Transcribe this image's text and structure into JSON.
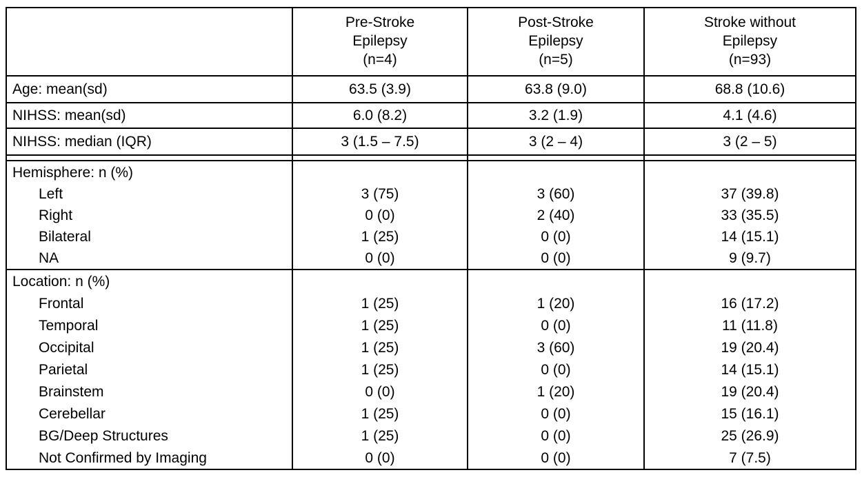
{
  "table": {
    "columns": [
      {
        "title_lines": [
          "Pre-Stroke",
          "Epilepsy",
          "(n=4)"
        ]
      },
      {
        "title_lines": [
          "Post-Stroke",
          "Epilepsy",
          "(n=5)"
        ]
      },
      {
        "title_lines": [
          "Stroke without",
          "Epilepsy",
          "(n=93)"
        ]
      }
    ],
    "simple_rows": [
      {
        "label": "Age: mean(sd)",
        "values": [
          "63.5 (3.9)",
          "63.8 (9.0)",
          "68.8 (10.6)"
        ]
      },
      {
        "label": "NIHSS: mean(sd)",
        "values": [
          "6.0 (8.2)",
          "3.2 (1.9)",
          "4.1 (4.6)"
        ]
      },
      {
        "label": "NIHSS: median (IQR)",
        "values": [
          "3 (1.5 – 7.5)",
          "3 (2 – 4)",
          "3 (2 – 5)"
        ]
      }
    ],
    "sections": [
      {
        "label": "Hemisphere: n (%)",
        "rows": [
          {
            "label": "Left",
            "values": [
              "3 (75)",
              "3 (60)",
              "37 (39.8)"
            ]
          },
          {
            "label": "Right",
            "values": [
              "0 (0)",
              "2 (40)",
              "33 (35.5)"
            ]
          },
          {
            "label": "Bilateral",
            "values": [
              "1 (25)",
              "0 (0)",
              "14 (15.1)"
            ]
          },
          {
            "label": "NA",
            "values": [
              "0 (0)",
              "0 (0)",
              "9 (9.7)"
            ]
          }
        ]
      },
      {
        "label": "Location: n (%)",
        "rows": [
          {
            "label": "Frontal",
            "values": [
              "1 (25)",
              "1 (20)",
              "16 (17.2)"
            ]
          },
          {
            "label": "Temporal",
            "values": [
              "1 (25)",
              "0 (0)",
              "11 (11.8)"
            ]
          },
          {
            "label": "Occipital",
            "values": [
              "1 (25)",
              "3 (60)",
              "19 (20.4)"
            ]
          },
          {
            "label": "Parietal",
            "values": [
              "1 (25)",
              "0 (0)",
              "14 (15.1)"
            ]
          },
          {
            "label": "Brainstem",
            "values": [
              "0 (0)",
              "1 (20)",
              "19 (20.4)"
            ]
          },
          {
            "label": "Cerebellar",
            "values": [
              "1 (25)",
              "0 (0)",
              "15 (16.1)"
            ]
          },
          {
            "label": "BG/Deep Structures",
            "values": [
              "1 (25)",
              "0 (0)",
              "25 (26.9)"
            ]
          },
          {
            "label": "Not Confirmed by Imaging",
            "values": [
              "0 (0)",
              "0 (0)",
              "7 (7.5)"
            ]
          }
        ]
      }
    ],
    "colors": {
      "border": "#000000",
      "text": "#000000",
      "background": "#ffffff"
    }
  }
}
